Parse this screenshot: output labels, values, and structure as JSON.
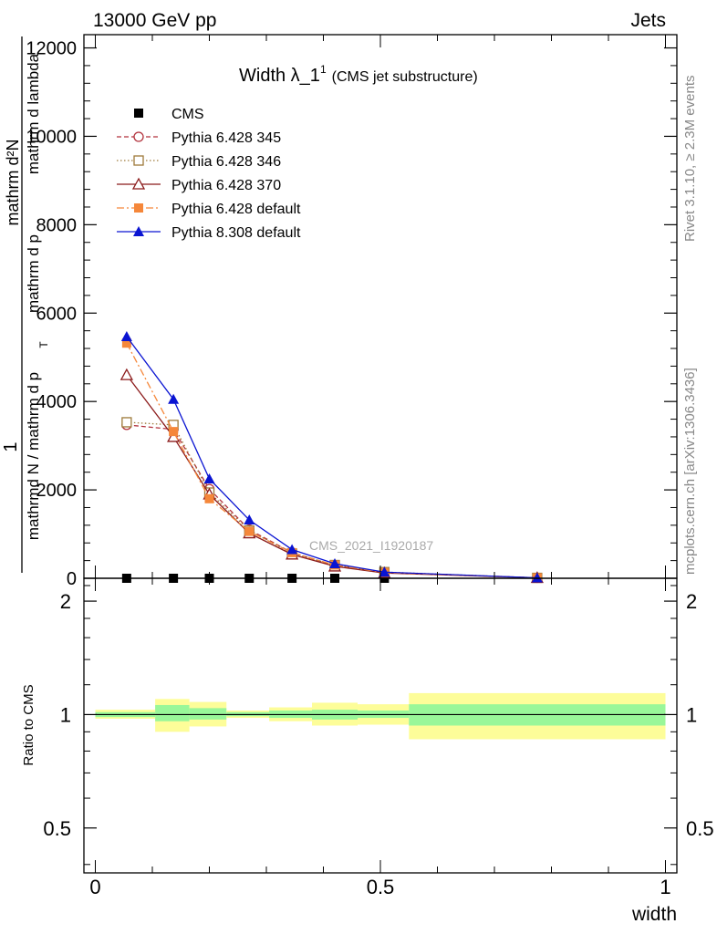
{
  "header": {
    "left": "13000 GeV pp",
    "right": "Jets"
  },
  "side_text": {
    "rivet": "Rivet 3.1.10, ≥ 2.3M events",
    "mcplots": "mcplots.cern.ch [arXiv:1306.3436]"
  },
  "colors": {
    "cms": "#000000",
    "p345": "#b2323c",
    "p346": "#9e7a3a",
    "p370": "#8b1a1a",
    "p6def": "#f5873a",
    "p8def": "#0a14d2",
    "band_inner": "#99f799",
    "band_outer": "#fdfd99"
  },
  "chart_data": [
    {
      "type": "line",
      "title": "Width λ_1",
      "title_sup": "1",
      "title_suffix": "(CMS jet substructure)",
      "watermark": "CMS_2021_I1920187",
      "ylabel_top": "1",
      "ylabel_num": "mathrm d²N",
      "ylabel_den_left": "mathrmd N / mathrm d p",
      "ylabel_den_sub": "T",
      "ylabel_den_right": "mathrm d p",
      "ylabel_den_tail": "mathrm d lambda",
      "xlim": [
        -0.02,
        1.02
      ],
      "ylim": [
        0,
        12300
      ],
      "yticks": [
        0,
        2000,
        4000,
        6000,
        8000,
        10000,
        12000
      ],
      "ytick_labels": [
        "0",
        "2000",
        "4000",
        "6000",
        "8000",
        "10000",
        "12000"
      ],
      "legend_position": "top-left",
      "x": [
        0.055,
        0.137,
        0.2,
        0.27,
        0.345,
        0.42,
        0.507,
        0.775
      ],
      "series": [
        {
          "name": "CMS",
          "color": "#000000",
          "marker": "square-filled",
          "line": "none",
          "values": [
            0,
            0,
            0,
            0,
            0,
            0,
            0,
            0
          ]
        },
        {
          "name": "Pythia 6.428 345",
          "color": "#b2323c",
          "marker": "circle-open",
          "line": "dashed",
          "values": [
            3470,
            3370,
            2020,
            1100,
            580,
            290,
            130,
            10
          ]
        },
        {
          "name": "Pythia 6.428 346",
          "color": "#9e7a3a",
          "marker": "square-open",
          "line": "dotted",
          "values": [
            3530,
            3470,
            1940,
            1080,
            560,
            300,
            140,
            10
          ]
        },
        {
          "name": "Pythia 6.428 370",
          "color": "#8b1a1a",
          "marker": "triangle-open",
          "line": "solid",
          "values": [
            4600,
            3200,
            1900,
            1020,
            540,
            270,
            120,
            10
          ]
        },
        {
          "name": "Pythia 6.428 default",
          "color": "#f5873a",
          "marker": "square-filled",
          "line": "dashdot",
          "values": [
            5320,
            3320,
            1800,
            1060,
            580,
            300,
            130,
            10
          ]
        },
        {
          "name": "Pythia 8.308 default",
          "color": "#0a14d2",
          "marker": "triangle-filled",
          "line": "solid",
          "values": [
            5470,
            4050,
            2250,
            1320,
            650,
            330,
            140,
            10
          ]
        }
      ]
    },
    {
      "type": "area",
      "ylabel": "Ratio to CMS",
      "xlabel": "width",
      "xlim": [
        -0.02,
        1.02
      ],
      "ylim": [
        0.38,
        2.3
      ],
      "xticks": [
        0,
        0.5,
        1
      ],
      "xtick_labels": [
        "0",
        "0.5",
        "1"
      ],
      "yticks": [
        0.5,
        1,
        2
      ],
      "ytick_labels": [
        "0.5",
        "1",
        "2"
      ],
      "reference": 1,
      "bins": [
        {
          "x_low": 0.0,
          "x_high": 0.105,
          "inner": [
            0.985,
            1.015
          ],
          "outer": [
            0.975,
            1.03
          ]
        },
        {
          "x_low": 0.105,
          "x_high": 0.165,
          "inner": [
            0.96,
            1.06
          ],
          "outer": [
            0.9,
            1.1
          ]
        },
        {
          "x_low": 0.165,
          "x_high": 0.23,
          "inner": [
            0.97,
            1.04
          ],
          "outer": [
            0.93,
            1.08
          ]
        },
        {
          "x_low": 0.23,
          "x_high": 0.305,
          "inner": [
            0.99,
            1.015
          ],
          "outer": [
            0.98,
            1.025
          ]
        },
        {
          "x_low": 0.305,
          "x_high": 0.38,
          "inner": [
            0.98,
            1.025
          ],
          "outer": [
            0.96,
            1.045
          ]
        },
        {
          "x_low": 0.38,
          "x_high": 0.46,
          "inner": [
            0.97,
            1.03
          ],
          "outer": [
            0.935,
            1.075
          ]
        },
        {
          "x_low": 0.46,
          "x_high": 0.55,
          "inner": [
            0.98,
            1.025
          ],
          "outer": [
            0.94,
            1.065
          ]
        },
        {
          "x_low": 0.55,
          "x_high": 1.0,
          "inner": [
            0.935,
            1.065
          ],
          "outer": [
            0.86,
            1.14
          ]
        }
      ]
    }
  ]
}
